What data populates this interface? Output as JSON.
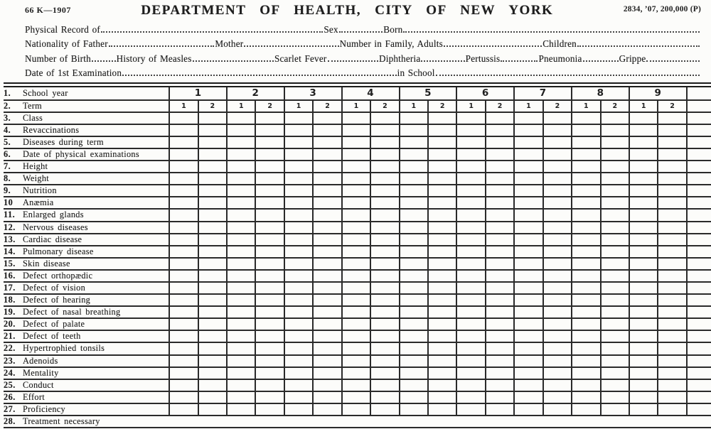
{
  "meta": {
    "paper_color": "#fcfcfa",
    "ink_color": "#1f1f1f"
  },
  "masthead": {
    "form_number": "66 K—1907",
    "title": "DEPARTMENT OF HEALTH, CITY OF NEW YORK",
    "print_code": "2834, ’07, 200,000 (P)"
  },
  "header_fields": {
    "lines": [
      [
        {
          "t": "Physical Record of"
        },
        {
          "f": 315
        },
        {
          "t": "Sex"
        },
        {
          "f": 62
        },
        {
          "t": "Born"
        },
        {
          "f": 420
        }
      ],
      [
        {
          "t": "Nationality of Father"
        },
        {
          "f": 145
        },
        {
          "t": "Mother"
        },
        {
          "f": 130
        },
        {
          "t": "Number in Family, Adults"
        },
        {
          "f": 135
        },
        {
          "t": "Children"
        },
        {
          "f": 168
        }
      ],
      [
        {
          "t": "Number of Birth"
        },
        {
          "f": 33
        },
        {
          "t": "History of Measles"
        },
        {
          "f": 112
        },
        {
          "t": "Scarlet Fever"
        },
        {
          "f": 70
        },
        {
          "t": "Diphtheria"
        },
        {
          "f": 60
        },
        {
          "t": "Pertussis"
        },
        {
          "f": 51
        },
        {
          "t": "Pneumonia"
        },
        {
          "f": 49
        },
        {
          "t": "Grippe"
        },
        {
          "f": 73
        }
      ],
      [
        {
          "t": "Date of 1st Examination"
        },
        {
          "f": 382
        },
        {
          "t": "in School"
        },
        {
          "f": 368
        }
      ]
    ]
  },
  "table": {
    "years": [
      "1",
      "2",
      "3",
      "4",
      "5",
      "6",
      "7",
      "8",
      "9"
    ],
    "terms_per_year": [
      "1",
      "2"
    ],
    "rows": [
      {
        "num": "1.",
        "label": "School year",
        "type": "year-header"
      },
      {
        "num": "2.",
        "label": "Term",
        "type": "term-header"
      },
      {
        "num": "3.",
        "label": "Class",
        "type": "grid"
      },
      {
        "num": "4.",
        "label": "Revaccinations",
        "type": "grid"
      },
      {
        "num": "5.",
        "label": "Diseases during term",
        "type": "grid"
      },
      {
        "num": "6.",
        "label": "Date of physical examinations",
        "type": "grid"
      },
      {
        "num": "7.",
        "label": "Height",
        "type": "grid"
      },
      {
        "num": "8.",
        "label": "Weight",
        "type": "grid"
      },
      {
        "num": "9.",
        "label": "Nutrition",
        "type": "grid"
      },
      {
        "num": "10",
        "label": "Anæmia",
        "type": "grid"
      },
      {
        "num": "11.",
        "label": "Enlarged glands",
        "type": "grid"
      },
      {
        "num": "12.",
        "label": "Nervous diseases",
        "type": "grid"
      },
      {
        "num": "13.",
        "label": "Cardiac disease",
        "type": "grid"
      },
      {
        "num": "14.",
        "label": "Pulmonary disease",
        "type": "grid"
      },
      {
        "num": "15.",
        "label": "Skin disease",
        "type": "grid"
      },
      {
        "num": "16.",
        "label": "Defect orthopædic",
        "type": "grid"
      },
      {
        "num": "17.",
        "label": "Defect of vision",
        "type": "grid"
      },
      {
        "num": "18.",
        "label": "Defect of hearing",
        "type": "grid"
      },
      {
        "num": "19.",
        "label": "Defect of nasal breathing",
        "type": "grid"
      },
      {
        "num": "20.",
        "label": "Defect of palate",
        "type": "grid"
      },
      {
        "num": "21.",
        "label": "Defect of teeth",
        "type": "grid"
      },
      {
        "num": "22.",
        "label": "Hypertrophied tonsils",
        "type": "grid"
      },
      {
        "num": "23.",
        "label": "Adenoids",
        "type": "grid"
      },
      {
        "num": "24.",
        "label": "Mentality",
        "type": "grid"
      },
      {
        "num": "25.",
        "label": "Conduct",
        "type": "grid"
      },
      {
        "num": "26.",
        "label": "Effort",
        "type": "grid"
      },
      {
        "num": "27.",
        "label": "Proficiency",
        "type": "grid"
      },
      {
        "num": "28.",
        "label": "Treatment necessary",
        "type": "full-width"
      }
    ]
  }
}
